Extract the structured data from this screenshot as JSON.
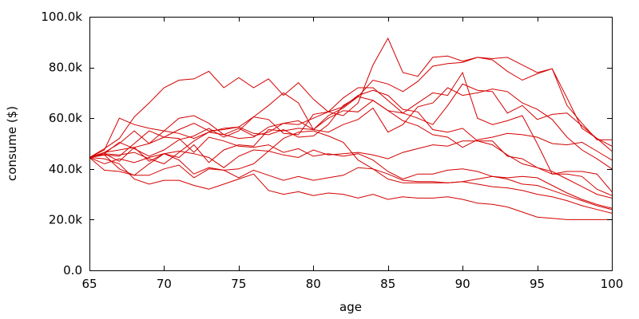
{
  "chart_data": {
    "type": "line",
    "title": "",
    "xlabel": "age",
    "ylabel": "consume ($)",
    "xlim": [
      65,
      100
    ],
    "ylim": [
      0,
      100000
    ],
    "grid": false,
    "legend": "none",
    "line_color": "#d40000",
    "x_ticks": [
      {
        "value": 65,
        "label": "65"
      },
      {
        "value": 70,
        "label": "70"
      },
      {
        "value": 75,
        "label": "75"
      },
      {
        "value": 80,
        "label": "80"
      },
      {
        "value": 85,
        "label": "85"
      },
      {
        "value": 90,
        "label": "90"
      },
      {
        "value": 95,
        "label": "95"
      },
      {
        "value": 100,
        "label": "100"
      }
    ],
    "y_ticks": [
      {
        "value": 0,
        "label": "0.0"
      },
      {
        "value": 20000,
        "label": "20.0k"
      },
      {
        "value": 40000,
        "label": "40.0k"
      },
      {
        "value": 60000,
        "label": "60.0k"
      },
      {
        "value": 80000,
        "label": "80.0k"
      },
      {
        "value": 100000,
        "label": "100.0k"
      }
    ],
    "x": [
      65,
      66,
      67,
      68,
      69,
      70,
      71,
      72,
      73,
      74,
      75,
      76,
      77,
      78,
      79,
      80,
      81,
      82,
      83,
      84,
      85,
      86,
      87,
      88,
      89,
      90,
      91,
      92,
      93,
      94,
      95,
      96,
      97,
      98,
      99,
      100
    ],
    "series": [
      {
        "values": [
          44500,
          48000,
          52000,
          60500,
          66000,
          72000,
          75000,
          75500,
          78500,
          72000,
          76000,
          72000,
          75500,
          69000,
          74000,
          67500,
          62500,
          68000,
          72000,
          72000,
          67000,
          62000,
          60000,
          57500,
          65000,
          73500,
          71000,
          70500,
          62000,
          65000,
          59500,
          61500,
          62000,
          57000,
          52000,
          47000
        ]
      },
      {
        "values": [
          44500,
          46500,
          50000,
          55000,
          50000,
          55000,
          60000,
          61000,
          58000,
          53500,
          56000,
          53000,
          54500,
          58000,
          57500,
          60000,
          62500,
          64500,
          69000,
          71000,
          69000,
          63500,
          62500,
          55500,
          54500,
          56000,
          51000,
          51000,
          45000,
          44000,
          40500,
          38000,
          38000,
          37000,
          32000,
          29500
        ]
      },
      {
        "values": [
          44500,
          47500,
          60000,
          57500,
          56000,
          55000,
          54000,
          52000,
          54500,
          53500,
          52000,
          52500,
          56500,
          58000,
          59000,
          55500,
          60000,
          63000,
          62500,
          67000,
          63000,
          62000,
          66000,
          70000,
          69000,
          78000,
          60000,
          57500,
          59000,
          61000,
          50000,
          38000,
          39000,
          39000,
          38000,
          31000
        ]
      },
      {
        "values": [
          44500,
          46000,
          43000,
          48500,
          43000,
          46000,
          47000,
          46000,
          44500,
          40500,
          45000,
          47500,
          47000,
          45500,
          44500,
          47500,
          45500,
          46000,
          46500,
          45500,
          44000,
          46500,
          48000,
          49500,
          49000,
          51000,
          51000,
          49500,
          45500,
          42000,
          40500,
          39000,
          36000,
          33000,
          30000,
          28500
        ]
      },
      {
        "values": [
          44500,
          44000,
          42000,
          36000,
          34000,
          35500,
          35500,
          33500,
          32000,
          34000,
          36000,
          38000,
          31500,
          30000,
          31000,
          29500,
          30500,
          30000,
          28500,
          30000,
          28000,
          29000,
          28500,
          28500,
          29000,
          28000,
          26500,
          26000,
          25000,
          23000,
          21000,
          20500,
          20000,
          20000,
          20000,
          20000
        ]
      },
      {
        "values": [
          44500,
          39500,
          39000,
          37500,
          37500,
          40000,
          41500,
          36500,
          40000,
          39500,
          36500,
          39500,
          37500,
          35500,
          37000,
          35500,
          36500,
          37500,
          40500,
          40000,
          36000,
          34500,
          34500,
          34500,
          34500,
          35000,
          36000,
          37000,
          36500,
          37000,
          36500,
          33500,
          30500,
          28000,
          26000,
          24500
        ]
      },
      {
        "values": [
          44500,
          45500,
          40000,
          37500,
          42000,
          46000,
          44500,
          49500,
          42500,
          47500,
          49500,
          49000,
          55500,
          55000,
          56000,
          55500,
          54500,
          57500,
          59500,
          64000,
          54500,
          57500,
          64500,
          66000,
          72000,
          69000,
          70000,
          71500,
          70500,
          66000,
          63500,
          59500,
          52500,
          47500,
          44000,
          40000
        ]
      },
      {
        "values": [
          44500,
          45500,
          45000,
          50000,
          55000,
          52500,
          52000,
          46500,
          52500,
          51000,
          49000,
          48500,
          49500,
          46500,
          48000,
          45000,
          46000,
          45000,
          46000,
          43500,
          39000,
          36000,
          38000,
          38000,
          39500,
          40000,
          39000,
          37000,
          36000,
          34000,
          33500,
          31500,
          29500,
          27500,
          25500,
          24000
        ]
      },
      {
        "values": [
          44500,
          46500,
          47500,
          48500,
          50000,
          52500,
          55500,
          58000,
          55000,
          55500,
          56500,
          54000,
          53500,
          55500,
          52500,
          53000,
          57500,
          65000,
          68500,
          67000,
          63000,
          59000,
          57000,
          53500,
          52500,
          48500,
          51500,
          52500,
          54000,
          53500,
          52500,
          50000,
          49500,
          50500,
          47000,
          43500
        ]
      },
      {
        "values": [
          44500,
          42000,
          44000,
          42500,
          44500,
          46000,
          43500,
          38000,
          40500,
          39500,
          40000,
          42000,
          47000,
          52000,
          54500,
          55000,
          53000,
          50500,
          43500,
          40000,
          38000,
          35500,
          35000,
          35000,
          34500,
          35000,
          34000,
          33000,
          32500,
          31500,
          30000,
          29000,
          27500,
          25500,
          24000,
          22500
        ]
      },
      {
        "values": [
          44500,
          46000,
          50500,
          48000,
          45000,
          47500,
          51500,
          53000,
          56000,
          52500,
          55000,
          60500,
          59500,
          54000,
          53500,
          61500,
          62500,
          61000,
          66000,
          81000,
          91500,
          78000,
          76500,
          84000,
          84500,
          82500,
          84000,
          83500,
          84000,
          81000,
          78000,
          79500,
          68000,
          56000,
          52000,
          49000
        ]
      },
      {
        "values": [
          44500,
          46000,
          45500,
          46500,
          44000,
          42000,
          46500,
          51000,
          54500,
          56000,
          56500,
          60500,
          65000,
          70000,
          66000,
          55500,
          61000,
          64000,
          68500,
          75000,
          73500,
          70500,
          74500,
          80500,
          81500,
          82000,
          84000,
          83000,
          78500,
          75000,
          77500,
          79500,
          65000,
          58000,
          51500,
          51500
        ]
      }
    ]
  }
}
